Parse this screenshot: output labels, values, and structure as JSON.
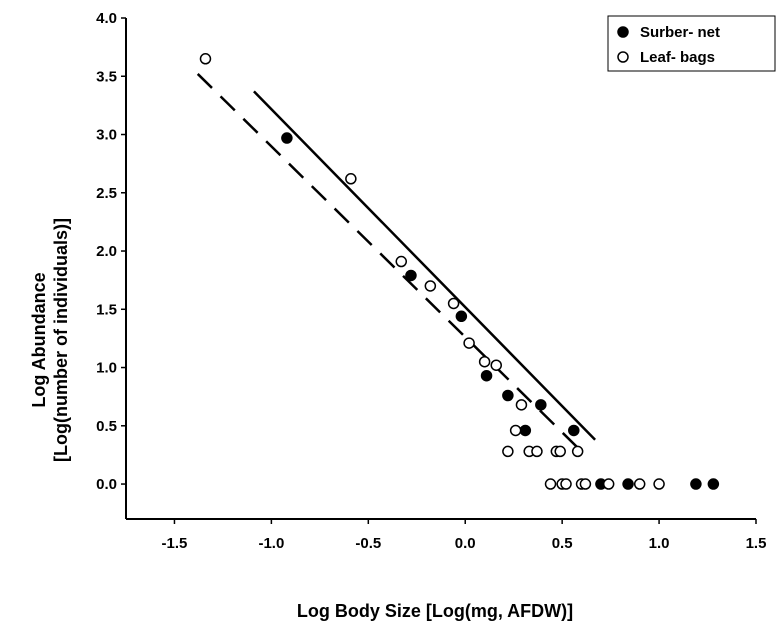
{
  "chart_data": {
    "type": "scatter",
    "title": "",
    "xlabel": "Log Body Size  [Log(mg, AFDW)]",
    "ylabel_lines": [
      "Log Abundance",
      "[Log(number of individuals)]"
    ],
    "xlim": [
      -1.75,
      1.5
    ],
    "ylim": [
      -0.3,
      4.0
    ],
    "x_ticks": [
      -1.5,
      -1.0,
      -0.5,
      0.0,
      0.5,
      1.0,
      1.5
    ],
    "x_tick_labels": [
      "-1.5",
      "-1.0",
      "-0.5",
      "0.0",
      "0.5",
      "1.0",
      "1.5"
    ],
    "y_ticks": [
      0.0,
      0.5,
      1.0,
      1.5,
      2.0,
      2.5,
      3.0,
      3.5,
      4.0
    ],
    "y_tick_labels": [
      "0.0",
      "0.5",
      "1.0",
      "1.5",
      "2.0",
      "2.5",
      "3.0",
      "3.5",
      "4.0"
    ],
    "grid": false,
    "legend_position": "top-right",
    "series": [
      {
        "name": "Surber- net",
        "marker": "filled-circle",
        "color": "#000000",
        "points": [
          [
            -0.92,
            2.97
          ],
          [
            -0.28,
            1.79
          ],
          [
            -0.02,
            1.44
          ],
          [
            0.11,
            0.93
          ],
          [
            0.22,
            0.76
          ],
          [
            0.31,
            0.46
          ],
          [
            0.39,
            0.68
          ],
          [
            0.56,
            0.46
          ],
          [
            0.7,
            0.0
          ],
          [
            0.84,
            0.0
          ],
          [
            1.19,
            0.0
          ],
          [
            1.28,
            0.0
          ]
        ]
      },
      {
        "name": "Leaf- bags",
        "marker": "open-circle",
        "color": "#000000",
        "points": [
          [
            -1.34,
            3.65
          ],
          [
            -0.59,
            2.62
          ],
          [
            -0.33,
            1.91
          ],
          [
            -0.18,
            1.7
          ],
          [
            -0.06,
            1.55
          ],
          [
            0.02,
            1.21
          ],
          [
            0.1,
            1.05
          ],
          [
            0.16,
            1.02
          ],
          [
            0.22,
            0.28
          ],
          [
            0.26,
            0.46
          ],
          [
            0.29,
            0.68
          ],
          [
            0.33,
            0.28
          ],
          [
            0.37,
            0.28
          ],
          [
            0.44,
            0.0
          ],
          [
            0.47,
            0.28
          ],
          [
            0.49,
            0.28
          ],
          [
            0.5,
            0.0
          ],
          [
            0.52,
            0.0
          ],
          [
            0.58,
            0.28
          ],
          [
            0.6,
            0.0
          ],
          [
            0.62,
            0.0
          ],
          [
            0.74,
            0.0
          ],
          [
            0.9,
            0.0
          ],
          [
            1.0,
            0.0
          ]
        ]
      }
    ],
    "fit_lines": [
      {
        "series": "Surber- net",
        "style": "solid",
        "x": [
          -1.09,
          0.67
        ],
        "y": [
          3.37,
          0.38
        ]
      },
      {
        "series": "Leaf- bags",
        "style": "dashed",
        "x": [
          -1.38,
          0.6
        ],
        "y": [
          3.52,
          0.28
        ]
      }
    ]
  }
}
